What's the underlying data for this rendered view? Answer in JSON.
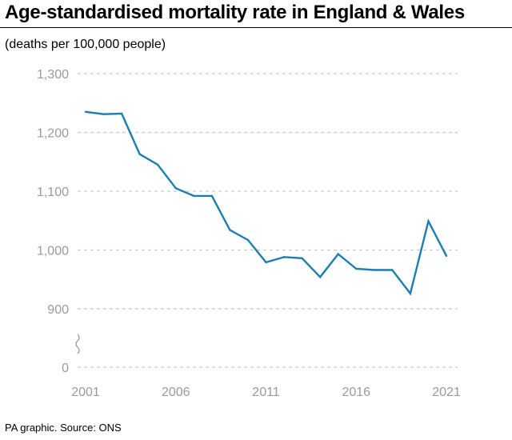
{
  "page": {
    "title": "Age-standardised mortality rate in England & Wales",
    "subtitle": "(deaths per 100,000 people)",
    "source": "PA graphic. Source: ONS"
  },
  "colors": {
    "line": "#1a7fb0",
    "grid": "#c8c8c8",
    "tick_text": "#9a9a9a"
  },
  "chart_data": {
    "type": "line",
    "title": "Age-standardised mortality rate in England & Wales",
    "ylabel": "(deaths per 100,000 people)",
    "xlabel": "",
    "x": [
      2001,
      2002,
      2003,
      2004,
      2005,
      2006,
      2007,
      2008,
      2009,
      2010,
      2011,
      2012,
      2013,
      2014,
      2015,
      2016,
      2017,
      2018,
      2019,
      2020,
      2021
    ],
    "series": [
      {
        "name": "Age-standardised mortality rate",
        "values": [
          1235,
          1231,
          1232,
          1163,
          1145,
          1105,
          1092,
          1092,
          1034,
          1017,
          979,
          988,
          986,
          954,
          993,
          968,
          966,
          966,
          926,
          1049,
          990
        ]
      }
    ],
    "xlim": [
      2001,
      2021
    ],
    "xticks": [
      2001,
      2006,
      2011,
      2016,
      2021
    ],
    "xtick_labels": [
      "2001",
      "2006",
      "2011",
      "2016",
      "2021"
    ],
    "ylim": [
      900,
      1300
    ],
    "yticks": [
      900,
      1000,
      1100,
      1200,
      1300
    ],
    "ytick_labels": [
      "900",
      "1,000",
      "1,100",
      "1,200",
      "1,300"
    ],
    "y_baseline_label": "0",
    "axis_break": true,
    "grid": true,
    "legend": "none"
  }
}
